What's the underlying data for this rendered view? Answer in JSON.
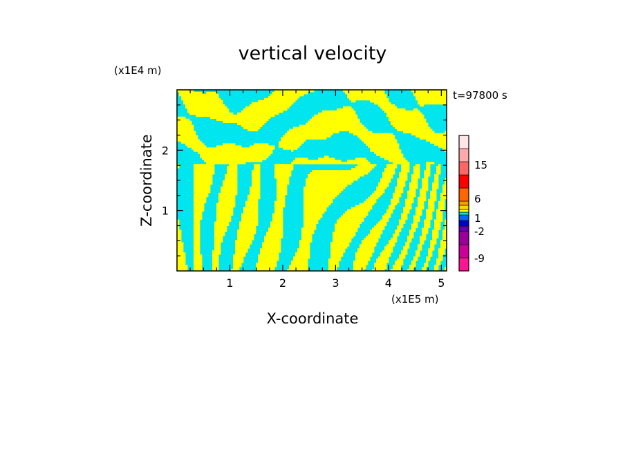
{
  "chart_data": {
    "type": "heatmap",
    "title": "vertical velocity",
    "xlabel": "X-coordinate",
    "ylabel": "Z-coordinate",
    "x_unit": "(x1E5 m)",
    "y_unit": "(x1E4 m)",
    "time_label": "t=97800 s",
    "xlim": [
      0,
      5.1
    ],
    "ylim": [
      0,
      3.0
    ],
    "x_ticks": [
      1,
      2,
      3,
      4,
      5
    ],
    "y_ticks": [
      1,
      2
    ],
    "x_minor_step": 0.25,
    "y_minor_step": 0.25,
    "field_colors": {
      "positive": "#ffff00",
      "negative": "#00e5ee"
    },
    "colorbar": {
      "labels": [
        {
          "value": 15,
          "text": "15"
        },
        {
          "value": 6,
          "text": "6"
        },
        {
          "value": 1,
          "text": "1"
        },
        {
          "value": -2,
          "text": "-2"
        },
        {
          "value": -9,
          "text": "-9"
        }
      ],
      "colors": [
        "#ff1493",
        "#cc0099",
        "#990099",
        "#6600aa",
        "#0000cc",
        "#0066ff",
        "#00e5ee",
        "#ffff00",
        "#ffd700",
        "#ff9900",
        "#ff6600",
        "#ff0000",
        "#ff6666",
        "#ffaaaa",
        "#ffe5e5"
      ]
    }
  }
}
